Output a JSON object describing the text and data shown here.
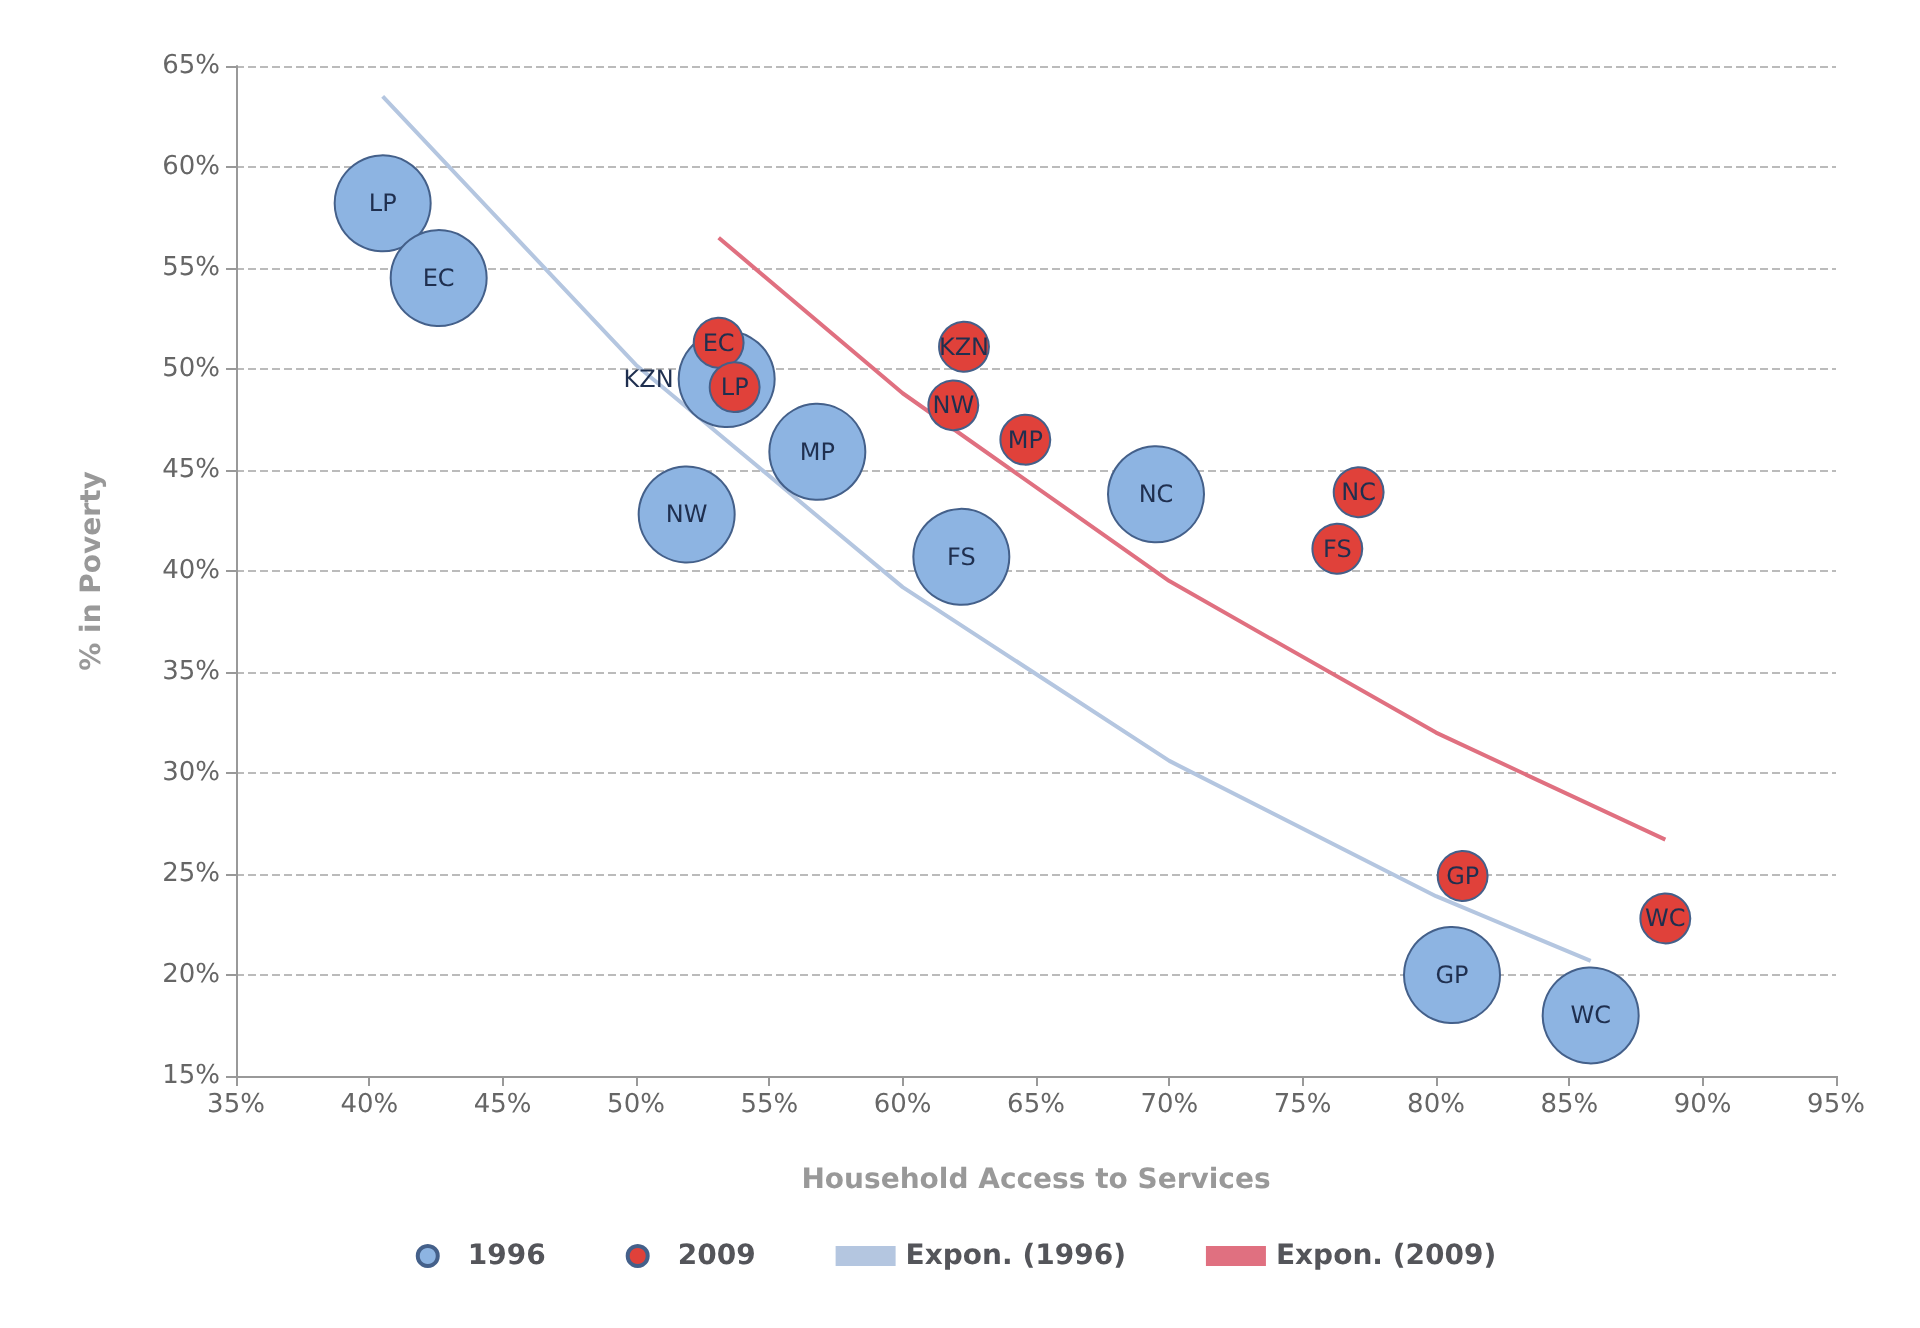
{
  "chart_data": {
    "type": "bubble",
    "xlabel": "Household Access to Services",
    "ylabel": "% in Poverty",
    "xlim": [
      35,
      95
    ],
    "xticks": [
      {
        "value": 35,
        "label": "35%"
      },
      {
        "value": 40,
        "label": "40%"
      },
      {
        "value": 45,
        "label": "45%"
      },
      {
        "value": 50,
        "label": "50%"
      },
      {
        "value": 55,
        "label": "55%"
      },
      {
        "value": 60,
        "label": "60%"
      },
      {
        "value": 65,
        "label": "65%"
      },
      {
        "value": 70,
        "label": "70%"
      },
      {
        "value": 75,
        "label": "75%"
      },
      {
        "value": 80,
        "label": "80%"
      },
      {
        "value": 85,
        "label": "85%"
      },
      {
        "value": 90,
        "label": "90%"
      },
      {
        "value": 95,
        "label": "95%"
      }
    ],
    "ylim": [
      15,
      65
    ],
    "yticks": [
      {
        "value": 15,
        "label": "15%"
      },
      {
        "value": 20,
        "label": "20%"
      },
      {
        "value": 25,
        "label": "25%"
      },
      {
        "value": 30,
        "label": "30%"
      },
      {
        "value": 35,
        "label": "35%"
      },
      {
        "value": 40,
        "label": "40%"
      },
      {
        "value": 45,
        "label": "45%"
      },
      {
        "value": 50,
        "label": "50%"
      },
      {
        "value": 55,
        "label": "55%"
      },
      {
        "value": 60,
        "label": "60%"
      },
      {
        "value": 65,
        "label": "65%"
      }
    ],
    "grid": "y",
    "legend": "bottom",
    "series": [
      {
        "name": "1996",
        "color": "#8db4e2",
        "x": [
          40.5,
          42.6,
          53.4,
          56.8,
          51.9,
          62.2,
          69.5,
          80.6,
          85.8
        ],
        "values": [
          58.2,
          54.5,
          49.5,
          45.9,
          42.8,
          40.7,
          43.8,
          20.0,
          18.0
        ],
        "sizes": [
          1,
          1,
          1,
          1,
          1,
          1,
          1,
          1,
          1
        ],
        "value_labels": [
          "LP",
          "EC",
          "KZN",
          "MP",
          "NW",
          "FS",
          "NC",
          "GP",
          "WC"
        ]
      },
      {
        "name": "2009",
        "color": "#e0413a",
        "x": [
          53.1,
          53.7,
          62.3,
          61.9,
          64.6,
          77.1,
          76.3,
          81.0,
          88.6
        ],
        "values": [
          51.3,
          49.1,
          51.1,
          48.2,
          46.5,
          43.9,
          41.1,
          24.9,
          22.8
        ],
        "sizes": [
          0.27,
          0.27,
          0.27,
          0.27,
          0.27,
          0.27,
          0.27,
          0.27,
          0.27
        ],
        "value_labels": [
          "EC",
          "LP",
          "KZN",
          "NW",
          "MP",
          "NC",
          "FS",
          "GP",
          "WC"
        ]
      },
      {
        "name": "Expon. (1996)",
        "type": "line",
        "color": "#b4c6e0",
        "x": [
          40.5,
          50,
          60,
          70,
          80,
          85.8
        ],
        "values": [
          63.5,
          50.2,
          39.2,
          30.6,
          23.9,
          20.7
        ]
      },
      {
        "name": "Expon. (2009)",
        "type": "line",
        "color": "#e07080",
        "x": [
          53.1,
          60,
          70,
          80,
          88.6
        ],
        "values": [
          56.5,
          48.8,
          39.5,
          32.0,
          26.7
        ]
      }
    ]
  }
}
